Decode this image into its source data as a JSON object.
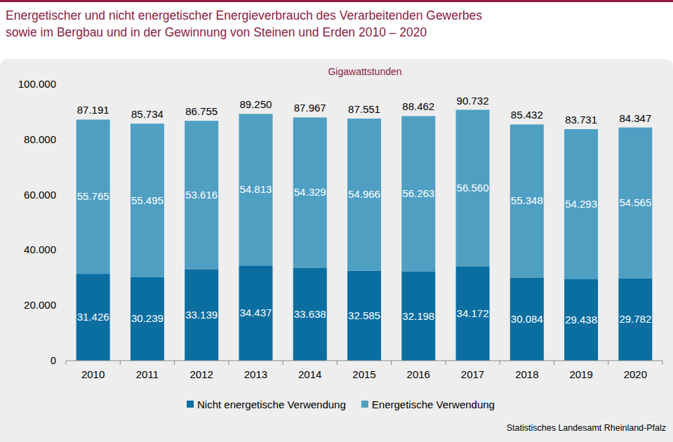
{
  "chart_data": {
    "type": "bar",
    "stacked": true,
    "data_labels": true,
    "grid": false,
    "legend": "bottom",
    "title": [
      "Energetischer und nicht energetischer Energieverbrauch des Verarbeitenden Gewerbes",
      "sowie im Bergbau und in der Gewinnung von Steinen und Erden 2010 – 2020"
    ],
    "subtitle": "Gigawattstunden",
    "source": "Statistisches Landesamt Rheinland-Pfalz",
    "categories": [
      "2010",
      "2011",
      "2012",
      "2013",
      "2014",
      "2015",
      "2016",
      "2017",
      "2018",
      "2019",
      "2020"
    ],
    "series": [
      {
        "name": "Nicht energetische Verwendung",
        "color": "#0b6ea0",
        "values": [
          31426,
          30239,
          33139,
          34437,
          33638,
          32585,
          32198,
          34172,
          30084,
          29438,
          29782
        ],
        "value_labels": [
          "31.426",
          "30.239",
          "33.139",
          "34.437",
          "33.638",
          "32.585",
          "32.198",
          "34.172",
          "30.084",
          "29.438",
          "29.782"
        ]
      },
      {
        "name": "Energetische Verwendung",
        "color": "#4f9fc3",
        "values": [
          55765,
          55495,
          53616,
          54813,
          54329,
          54966,
          56263,
          56560,
          55348,
          54293,
          54565
        ],
        "value_labels": [
          "55.765",
          "55.495",
          "53.616",
          "54.813",
          "54.329",
          "54.966",
          "56.263",
          "56.560",
          "55.348",
          "54.293",
          "54.565"
        ]
      }
    ],
    "totals": [
      87191,
      85734,
      86755,
      89250,
      87967,
      87551,
      88462,
      90732,
      85432,
      83731,
      84347
    ],
    "total_labels": [
      "87.191",
      "85.734",
      "86.755",
      "89.250",
      "87.967",
      "87.551",
      "88.462",
      "90.732",
      "85.432",
      "83.731",
      "84.347"
    ],
    "ylim": [
      0,
      100000
    ],
    "yticks": [
      0,
      {
        "value": 20000,
        "label": "20.000"
      },
      {
        "value": 40000,
        "label": "40.000"
      },
      {
        "value": 60000,
        "label": "60.000"
      },
      {
        "value": 80000,
        "label": "80.000"
      },
      {
        "value": 100000,
        "label": "100.000"
      }
    ]
  }
}
